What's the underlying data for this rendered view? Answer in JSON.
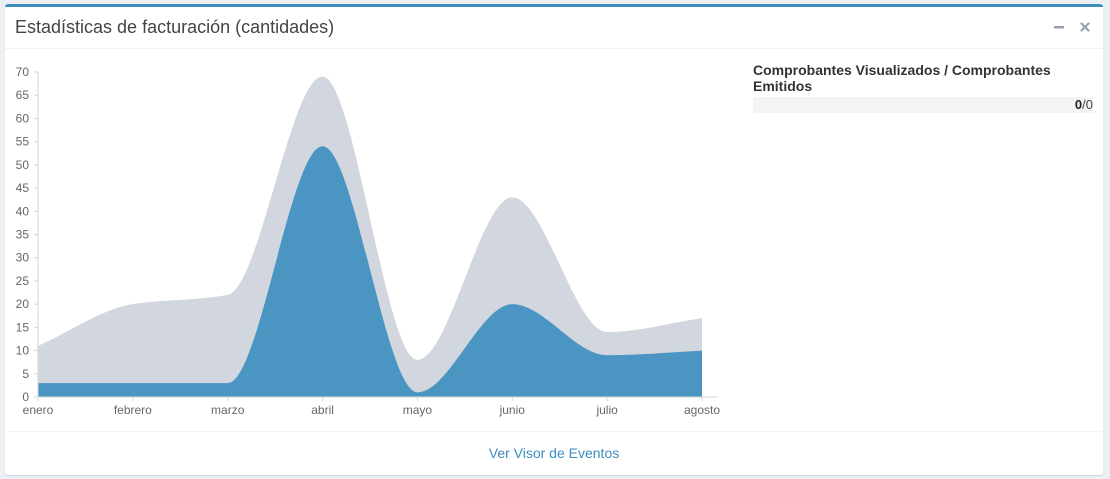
{
  "header": {
    "title": "Estadísticas de facturación (cantidades)",
    "minimize_icon": "minus-icon",
    "close_icon": "times-icon"
  },
  "side_stat": {
    "label": "Comprobantes Visualizados / Comprobantes Emitidos",
    "visualized": "0",
    "emitted": "0"
  },
  "footer": {
    "link_label": "Ver Visor de Eventos"
  },
  "colors": {
    "accent": "#3c8dbc",
    "series_total": "#d2d6de",
    "series_visualized": "#4a95c2"
  },
  "chart_data": {
    "type": "area",
    "categories": [
      "enero",
      "febrero",
      "marzo",
      "abril",
      "mayo",
      "junio",
      "julio",
      "agosto"
    ],
    "ylim": [
      0,
      70
    ],
    "yticks": [
      0,
      5,
      10,
      15,
      20,
      25,
      30,
      35,
      40,
      45,
      50,
      55,
      60,
      65,
      70
    ],
    "grid": false,
    "series": [
      {
        "values": [
          11,
          20,
          22,
          69,
          8,
          43,
          14,
          17
        ]
      },
      {
        "values": [
          3,
          3,
          3,
          54,
          1,
          20,
          9,
          10
        ]
      }
    ]
  }
}
